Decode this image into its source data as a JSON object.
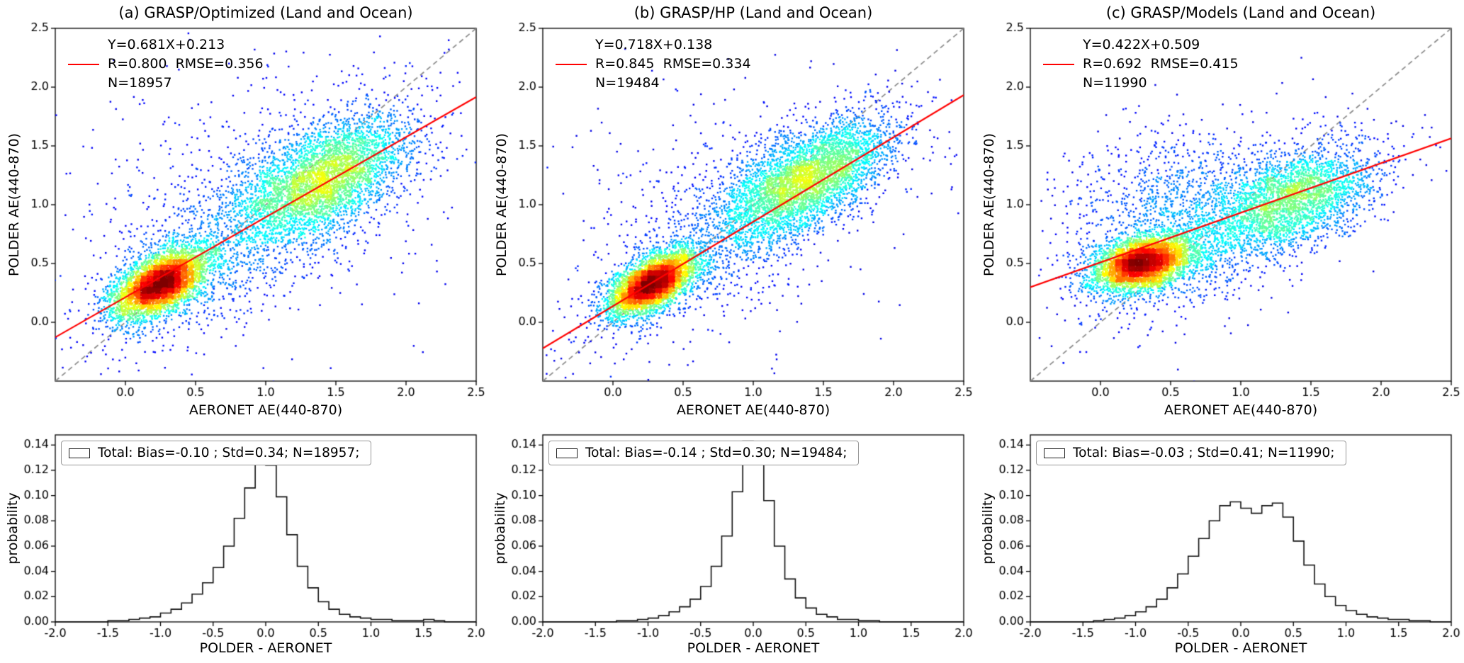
{
  "colors": {
    "fit_line": "#ff0000",
    "identity_line": "#8a8a8a",
    "histogram_line": "#111111",
    "point_colormap": "jet"
  },
  "chart_data": [
    {
      "id": "a",
      "title": "(a) GRASP/Optimized (Land and Ocean)",
      "scatter": {
        "type": "scatter",
        "xlabel": "AERONET AE(440-870)",
        "ylabel": "POLDER AE(440-870)",
        "xlim": [
          -0.5,
          2.5
        ],
        "ylim": [
          -0.5,
          2.5
        ],
        "xticks": [
          0.0,
          0.5,
          1.0,
          1.5,
          2.0,
          2.5
        ],
        "yticks": [
          0.0,
          0.5,
          1.0,
          1.5,
          2.0,
          2.5
        ],
        "fit": {
          "slope": 0.681,
          "intercept": 0.213,
          "r": 0.8,
          "rmse": 0.356,
          "n": 18957
        },
        "stats": {
          "line1": "Y=0.681X+0.213",
          "line2": "R=0.800  RMSE=0.356",
          "line3": "N=18957"
        },
        "identity_line": true,
        "seed": 11,
        "density_model": [
          {
            "cx": 0.25,
            "cy": 0.33,
            "sx": 0.17,
            "sy": 0.15,
            "rho": 0.55,
            "n": 4200
          },
          {
            "cx": 1.42,
            "cy": 1.22,
            "sx": 0.3,
            "sy": 0.26,
            "rho": 0.55,
            "n": 3600
          },
          {
            "cx": 0.85,
            "cy": 0.82,
            "sx": 0.55,
            "sy": 0.5,
            "rho": 0.72,
            "n": 1600
          },
          {
            "cx": 0.9,
            "cy": 1.0,
            "sx": 0.8,
            "sy": 0.7,
            "rho": 0.3,
            "n": 500
          }
        ]
      },
      "histogram": {
        "type": "bar",
        "legend": "Total: Bias=-0.10 ; Std=0.34; N=18957;",
        "xlabel": "POLDER - AERONET",
        "ylabel": "probability",
        "xlim": [
          -2.0,
          2.0
        ],
        "ylim": [
          0,
          0.148
        ],
        "xticks": [
          -2.0,
          -1.5,
          -1.0,
          -0.5,
          0.0,
          0.5,
          1.0,
          1.5,
          2.0
        ],
        "yticks": [
          0.0,
          0.02,
          0.04,
          0.06,
          0.08,
          0.1,
          0.12,
          0.14
        ],
        "bin_start": -2.0,
        "bin_width": 0.1,
        "values": [
          0,
          0,
          0,
          0,
          0,
          0.001,
          0.001,
          0.002,
          0.003,
          0.004,
          0.007,
          0.01,
          0.015,
          0.022,
          0.031,
          0.043,
          0.06,
          0.082,
          0.106,
          0.13,
          0.124,
          0.099,
          0.069,
          0.044,
          0.027,
          0.016,
          0.01,
          0.006,
          0.004,
          0.003,
          0.002,
          0.002,
          0.001,
          0.001,
          0.001,
          0.002,
          0.001,
          0,
          0,
          0
        ]
      }
    },
    {
      "id": "b",
      "title": "(b) GRASP/HP (Land and Ocean)",
      "scatter": {
        "type": "scatter",
        "xlabel": "AERONET AE(440-870)",
        "ylabel": "POLDER AE(440-870)",
        "xlim": [
          -0.5,
          2.5
        ],
        "ylim": [
          -0.5,
          2.5
        ],
        "xticks": [
          0.0,
          0.5,
          1.0,
          1.5,
          2.0,
          2.5
        ],
        "yticks": [
          0.0,
          0.5,
          1.0,
          1.5,
          2.0,
          2.5
        ],
        "fit": {
          "slope": 0.718,
          "intercept": 0.138,
          "r": 0.845,
          "rmse": 0.334,
          "n": 19484
        },
        "stats": {
          "line1": "Y=0.718X+0.138",
          "line2": "R=0.845  RMSE=0.334",
          "line3": "N=19484"
        },
        "identity_line": true,
        "seed": 23,
        "density_model": [
          {
            "cx": 0.28,
            "cy": 0.33,
            "sx": 0.16,
            "sy": 0.14,
            "rho": 0.6,
            "n": 4300
          },
          {
            "cx": 1.4,
            "cy": 1.22,
            "sx": 0.29,
            "sy": 0.25,
            "rho": 0.6,
            "n": 3700
          },
          {
            "cx": 0.85,
            "cy": 0.8,
            "sx": 0.5,
            "sy": 0.45,
            "rho": 0.75,
            "n": 1400
          },
          {
            "cx": 0.9,
            "cy": 1.0,
            "sx": 0.75,
            "sy": 0.62,
            "rho": 0.3,
            "n": 400
          }
        ]
      },
      "histogram": {
        "type": "bar",
        "legend": "Total: Bias=-0.14 ; Std=0.30; N=19484;",
        "xlabel": "POLDER - AERONET",
        "ylabel": "probability",
        "xlim": [
          -2.0,
          2.0
        ],
        "ylim": [
          0,
          0.148
        ],
        "xticks": [
          -2.0,
          -1.5,
          -1.0,
          -0.5,
          0.0,
          0.5,
          1.0,
          1.5,
          2.0
        ],
        "yticks": [
          0.0,
          0.02,
          0.04,
          0.06,
          0.08,
          0.1,
          0.12,
          0.14
        ],
        "bin_start": -2.0,
        "bin_width": 0.1,
        "values": [
          0,
          0,
          0,
          0,
          0,
          0,
          0,
          0.001,
          0.001,
          0.002,
          0.003,
          0.005,
          0.008,
          0.012,
          0.018,
          0.028,
          0.044,
          0.068,
          0.103,
          0.143,
          0.133,
          0.096,
          0.06,
          0.034,
          0.019,
          0.011,
          0.006,
          0.004,
          0.002,
          0.002,
          0.001,
          0.001,
          0,
          0,
          0,
          0,
          0,
          0,
          0,
          0
        ]
      }
    },
    {
      "id": "c",
      "title": "(c) GRASP/Models (Land and Ocean)",
      "scatter": {
        "type": "scatter",
        "xlabel": "AERONET AE(440-870)",
        "ylabel": "POLDER AE(440-870)",
        "xlim": [
          -0.5,
          2.5
        ],
        "ylim": [
          -0.5,
          2.5
        ],
        "xticks": [
          0.0,
          0.5,
          1.0,
          1.5,
          2.0,
          2.5
        ],
        "yticks": [
          0.0,
          0.5,
          1.0,
          1.5,
          2.0,
          2.5
        ],
        "fit": {
          "slope": 0.422,
          "intercept": 0.509,
          "r": 0.692,
          "rmse": 0.415,
          "n": 11990
        },
        "stats": {
          "line1": "Y=0.422X+0.509",
          "line2": "R=0.692  RMSE=0.415",
          "line3": "N=11990"
        },
        "identity_line": true,
        "seed": 37,
        "density_model": [
          {
            "cx": 0.3,
            "cy": 0.5,
            "sx": 0.18,
            "sy": 0.12,
            "rho": 0.35,
            "n": 4200
          },
          {
            "cx": 1.38,
            "cy": 1.05,
            "sx": 0.3,
            "sy": 0.22,
            "rho": 0.5,
            "n": 2600
          },
          {
            "cx": 0.85,
            "cy": 0.8,
            "sx": 0.5,
            "sy": 0.4,
            "rho": 0.55,
            "n": 1200
          },
          {
            "cx": 0.5,
            "cy": 1.0,
            "sx": 0.4,
            "sy": 0.35,
            "rho": 0.1,
            "n": 900
          }
        ]
      },
      "histogram": {
        "type": "bar",
        "legend": "Total: Bias=-0.03 ; Std=0.41; N=11990;",
        "xlabel": "POLDER - AERONET",
        "ylabel": "probability",
        "xlim": [
          -2.0,
          2.0
        ],
        "ylim": [
          0,
          0.148
        ],
        "xticks": [
          -2.0,
          -1.5,
          -1.0,
          -0.5,
          0.0,
          0.5,
          1.0,
          1.5,
          2.0
        ],
        "yticks": [
          0.0,
          0.02,
          0.04,
          0.06,
          0.08,
          0.1,
          0.12,
          0.14
        ],
        "bin_start": -2.0,
        "bin_width": 0.1,
        "values": [
          0,
          0,
          0,
          0,
          0,
          0,
          0.001,
          0.002,
          0.003,
          0.005,
          0.008,
          0.012,
          0.018,
          0.027,
          0.038,
          0.052,
          0.066,
          0.08,
          0.092,
          0.095,
          0.09,
          0.086,
          0.092,
          0.094,
          0.083,
          0.064,
          0.045,
          0.03,
          0.02,
          0.013,
          0.009,
          0.006,
          0.004,
          0.003,
          0.002,
          0.002,
          0.001,
          0.001,
          0,
          0
        ]
      }
    }
  ]
}
